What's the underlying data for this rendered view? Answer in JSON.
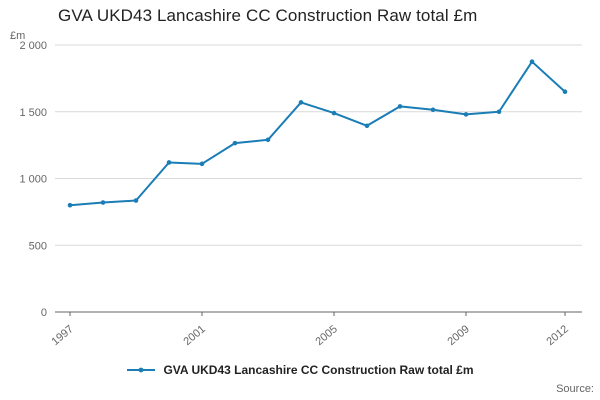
{
  "chart_data": {
    "type": "line",
    "title": "GVA UKD43 Lancashire CC Construction Raw total £m",
    "ylabel": "£m",
    "xlabel": "",
    "x": [
      1997,
      1998,
      1999,
      2000,
      2001,
      2002,
      2003,
      2004,
      2005,
      2006,
      2007,
      2008,
      2009,
      2010,
      2011,
      2012
    ],
    "values": [
      800,
      820,
      835,
      1120,
      1110,
      1265,
      1290,
      1570,
      1490,
      1395,
      1540,
      1515,
      1480,
      1500,
      1875,
      1650
    ],
    "ylim": [
      0,
      2000
    ],
    "yticks": [
      0,
      500,
      1000,
      1500,
      2000
    ],
    "ytick_labels": [
      "0",
      "500",
      "1 000",
      "1 500",
      "2 000"
    ],
    "xticks": [
      1997,
      2001,
      2005,
      2009,
      2012
    ],
    "xtick_labels": [
      "1997",
      "2001",
      "2005",
      "2009",
      "2012"
    ],
    "grid": true,
    "legend_position": "bottom",
    "series": [
      {
        "name": "GVA UKD43 Lancashire CC Construction Raw total £m",
        "color": "#1a7db6"
      }
    ]
  },
  "colors": {
    "line": "#1a7db6",
    "grid": "#d9d9d9",
    "axis": "#666666",
    "tick_text": "#666666",
    "title_text": "#222222"
  },
  "footer": {
    "source_label": "Source:"
  }
}
